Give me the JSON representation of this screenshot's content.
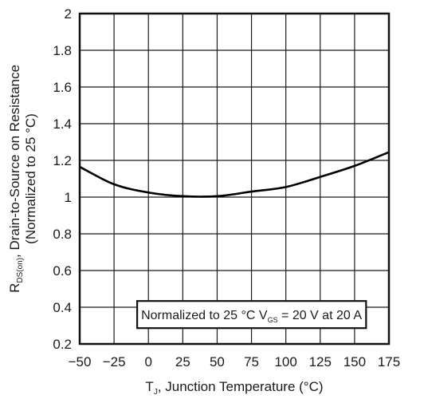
{
  "chart_data": {
    "type": "line",
    "title": "",
    "x": [
      -50,
      -25,
      0,
      25,
      50,
      75,
      100,
      125,
      150,
      175
    ],
    "series": [
      {
        "values": [
          1.165,
          1.07,
          1.025,
          1.005,
          1.005,
          1.03,
          1.055,
          1.11,
          1.17,
          1.245
        ]
      }
    ],
    "xlim": [
      -50,
      175
    ],
    "ylim": [
      0.2,
      2
    ],
    "xticks": [
      -50,
      -25,
      0,
      25,
      50,
      75,
      100,
      125,
      150,
      175
    ],
    "yticks": [
      0.2,
      0.4,
      0.6,
      0.8,
      1,
      1.2,
      1.4,
      1.6,
      1.8,
      2
    ],
    "xtick_labels": [
      "−50",
      "−25",
      "0",
      "25",
      "50",
      "75",
      "100",
      "125",
      "150",
      "175"
    ],
    "ytick_labels": [
      "0.2",
      "0.4",
      "0.6",
      "0.8",
      "1",
      "1.2",
      "1.4",
      "1.6",
      "1.8",
      "2"
    ],
    "xlabel": {
      "main": "T",
      "sub": "J",
      "rest": ", Junction Temperature (°C)"
    },
    "ylabel": {
      "line1_main": "R",
      "line1_sub": "DS(on)",
      "line1_rest": ", Drain-to-Source on Resistance",
      "line2": "(Normalized to 25 °C)"
    },
    "annotation": {
      "pre": "Normalized to 25 °C V",
      "sub": "GS",
      "post": " = 20 V at 20 A"
    },
    "grid": true,
    "line_color": "#000000",
    "grid_color": "#1a1a1a"
  }
}
